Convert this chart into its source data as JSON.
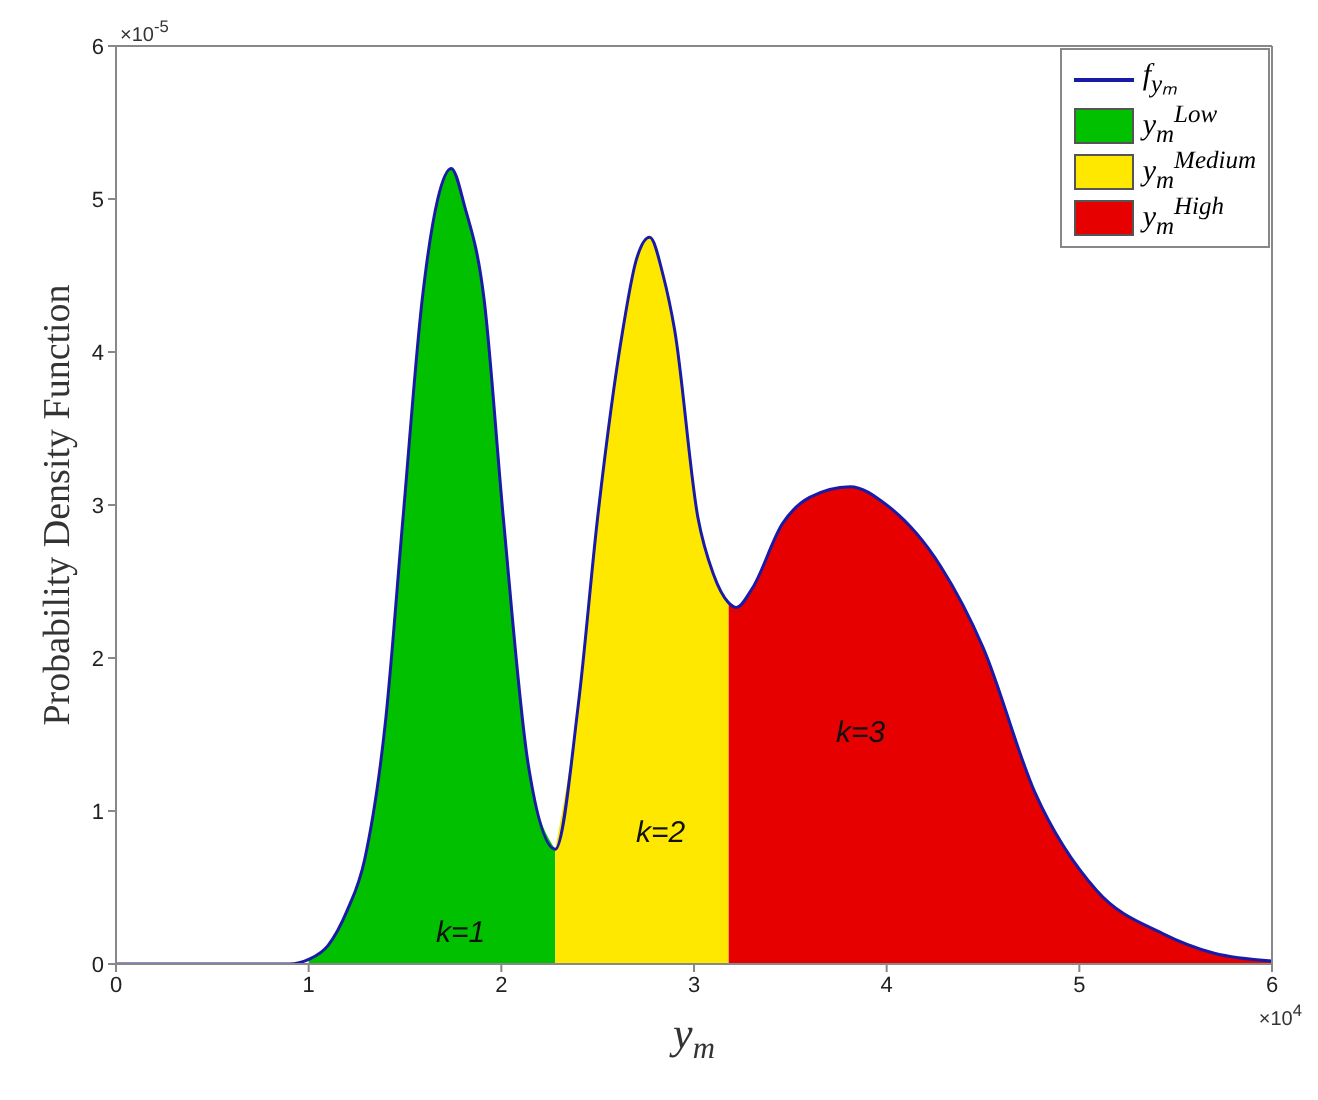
{
  "chart_data": {
    "type": "area",
    "xlabel": "y$_{m}$",
    "ylabel": "Probability Density Function",
    "legend": "top right",
    "x": [
      0,
      0.5,
      0.9,
      1.0,
      1.1,
      1.2,
      1.29,
      1.4,
      1.49,
      1.59,
      1.67,
      1.74,
      1.81,
      1.91,
      2.01,
      2.14,
      2.28,
      2.4,
      2.5,
      2.63,
      2.7,
      2.77,
      2.84,
      2.9,
      3.02,
      3.1,
      3.18,
      3.22,
      3.3,
      3.46,
      3.6,
      3.81,
      4.0,
      4.28,
      4.5,
      4.77,
      5.09,
      5.43,
      5.7,
      6.0
    ],
    "series": [
      {
        "name": "f$_{yₘ}$",
        "type": "line",
        "color": "#1a1aa8",
        "values": [
          0,
          0,
          0,
          0.03,
          0.12,
          0.35,
          0.68,
          1.6,
          2.92,
          4.35,
          5.0,
          5.2,
          4.95,
          4.35,
          2.92,
          1.3,
          0.75,
          1.7,
          2.92,
          4.14,
          4.6,
          4.75,
          4.5,
          4.14,
          2.92,
          2.55,
          2.36,
          2.33,
          2.45,
          2.88,
          3.05,
          3.12,
          3.0,
          2.6,
          2.07,
          1.12,
          0.48,
          0.2,
          0.07,
          0.02
        ]
      },
      {
        "name": "y$_{m}$$^{Low}$",
        "color": "#00c000",
        "values": [
          null,
          null,
          null,
          0.03,
          0.12,
          0.35,
          0.68,
          1.6,
          2.92,
          4.35,
          5.0,
          5.2,
          4.95,
          4.35,
          2.92,
          1.3,
          0.75,
          null,
          null,
          null,
          null,
          null,
          null,
          null,
          null,
          null,
          null,
          null,
          null,
          null,
          null,
          null,
          null,
          null,
          null,
          null,
          null,
          null,
          null,
          null
        ]
      },
      {
        "name": "y$_{m}$$^{Medium}$",
        "color": "#ffe800",
        "values": [
          null,
          null,
          null,
          null,
          null,
          null,
          null,
          null,
          null,
          null,
          null,
          null,
          null,
          null,
          null,
          null,
          0.75,
          1.7,
          2.92,
          4.14,
          4.6,
          4.75,
          4.5,
          4.14,
          2.92,
          2.55,
          2.36,
          null,
          null,
          null,
          null,
          null,
          null,
          null,
          null,
          null,
          null,
          null,
          null,
          null
        ]
      },
      {
        "name": "y$_{m}$$^{High}$",
        "color": "#e60000",
        "values": [
          null,
          null,
          null,
          null,
          null,
          null,
          null,
          null,
          null,
          null,
          null,
          null,
          null,
          null,
          null,
          null,
          null,
          null,
          null,
          null,
          null,
          null,
          null,
          null,
          null,
          null,
          2.36,
          2.33,
          2.45,
          2.88,
          3.05,
          3.12,
          3.0,
          2.6,
          2.07,
          1.12,
          0.48,
          0.2,
          0.07,
          0.02
        ]
      }
    ],
    "xlim": [
      0,
      6
    ],
    "xticks": [
      0,
      1,
      2,
      3,
      4,
      5,
      6
    ],
    "ylim": [
      0,
      6
    ],
    "yticks": [
      0,
      1,
      2,
      3,
      4,
      5,
      6
    ],
    "annotations": [
      "×10$^{-5}$",
      "×10$^{4}$",
      "k=1",
      "k=2",
      "k=3"
    ]
  }
}
